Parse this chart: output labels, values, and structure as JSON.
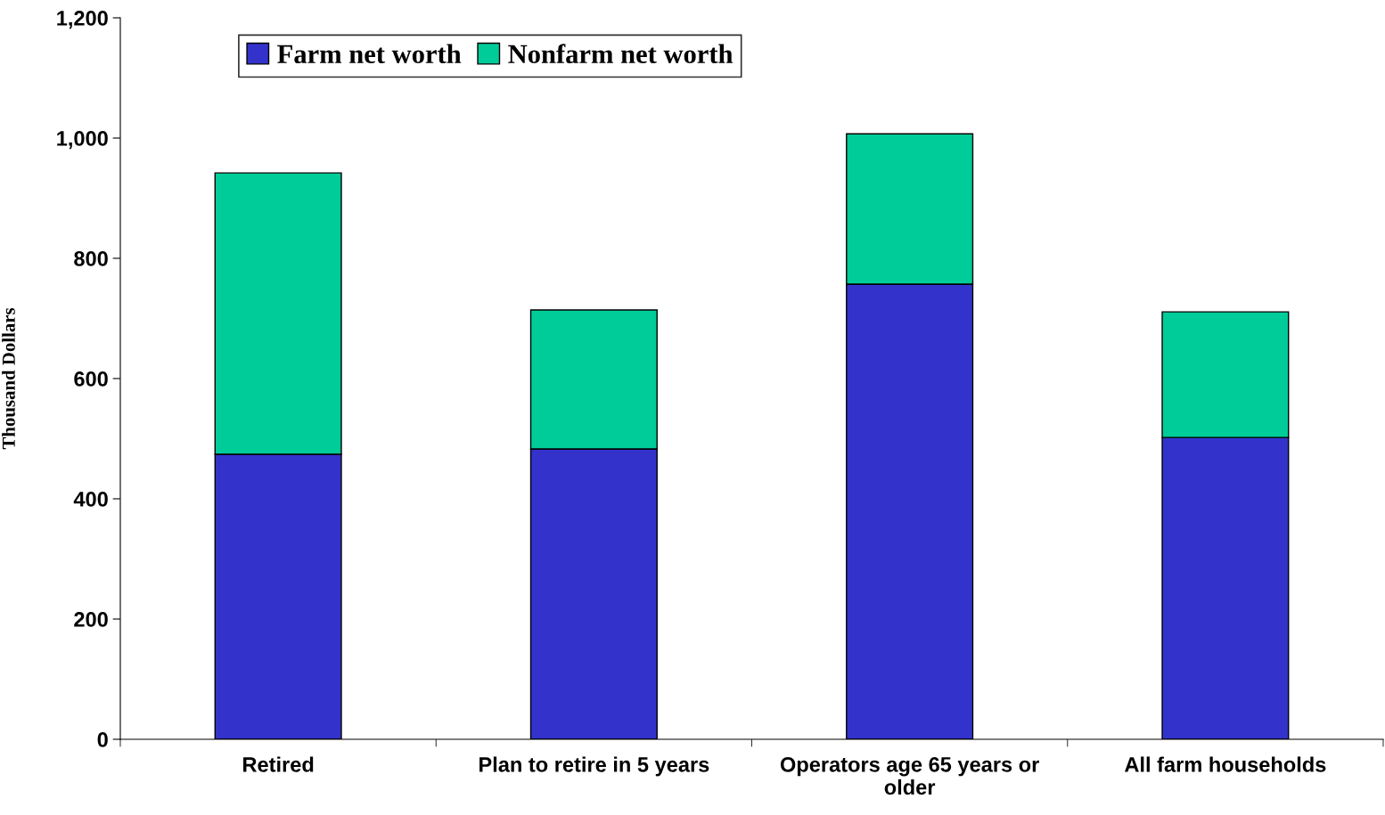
{
  "chart_data": {
    "type": "bar",
    "stacked": true,
    "ylabel": "Thousand Dollars",
    "categories": [
      "Retired",
      "Plan to retire in 5 years",
      "Operators age 65 years or\nolder",
      "All farm households"
    ],
    "series": [
      {
        "name": "Farm net worth",
        "color": "#3333cc",
        "values": [
          474,
          483,
          757,
          502
        ]
      },
      {
        "name": "Nonfarm net worth",
        "color": "#00cc99",
        "values": [
          468,
          231,
          250,
          209
        ]
      }
    ],
    "ylim": [
      0,
      1200
    ],
    "yticks": [
      0,
      200,
      400,
      600,
      800,
      {
        "value": 1000,
        "label": "1,000"
      },
      {
        "value": 1200,
        "label": "1,200"
      }
    ],
    "grid": false,
    "legend": "top left"
  }
}
